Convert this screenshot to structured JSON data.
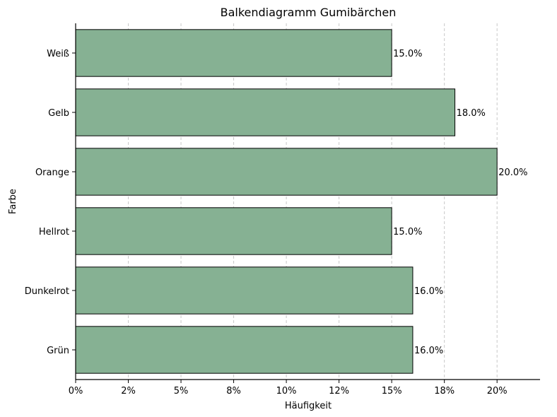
{
  "chart_data": {
    "type": "bar",
    "orientation": "horizontal",
    "title": "Balkendiagramm Gumibärchen",
    "xlabel": "Häufigkeit",
    "ylabel": "Farbe",
    "categories": [
      "Weiß",
      "Gelb",
      "Orange",
      "Hellrot",
      "Dunkelrot",
      "Grün"
    ],
    "values": [
      15.0,
      18.0,
      20.0,
      15.0,
      16.0,
      16.0
    ],
    "value_labels": [
      "15.0%",
      "18.0%",
      "20.0%",
      "15.0%",
      "16.0%",
      "16.0%"
    ],
    "x_ticks": [
      0,
      2.5,
      5,
      7.5,
      10,
      12.5,
      15,
      17.5,
      20
    ],
    "x_tick_labels": [
      "0%",
      "2%",
      "5%",
      "8%",
      "10%",
      "12%",
      "15%",
      "18%",
      "20%"
    ],
    "xlim": [
      0,
      21
    ],
    "grid": "vertical dashed",
    "legend": "none",
    "colors": {
      "bar": "#86b193",
      "bar_edge": "#000000",
      "grid": "#c8c8c8"
    }
  }
}
